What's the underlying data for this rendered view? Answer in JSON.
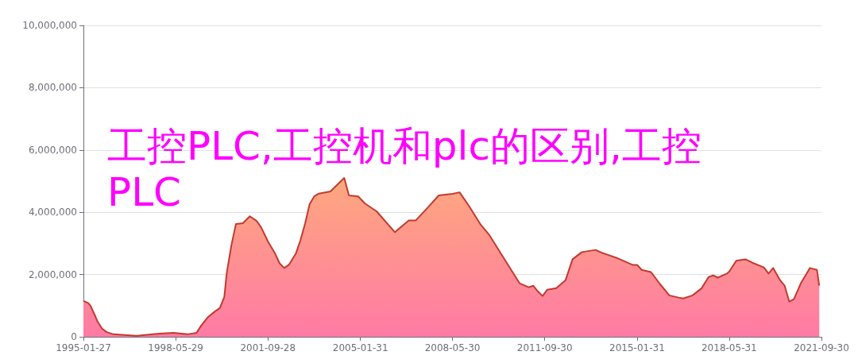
{
  "chart_data": {
    "type": "area",
    "title": "工控PLC,工控机和plc的区别,工控PLC",
    "x": [
      "1995-01-27",
      "1995-04",
      "1995-05",
      "1995-07",
      "1995-08",
      "1995-10",
      "1995-12",
      "1996-03",
      "1996-09",
      "1997-01",
      "1997-08",
      "1997-11",
      "1998-05",
      "1998-11",
      "1999-03",
      "1999-05",
      "1999-08",
      "1999-11",
      "2000-01",
      "2000-03",
      "2000-04",
      "2000-06",
      "2000-08",
      "2000-11",
      "2001-02",
      "2001-05",
      "2001-07",
      "2001-10",
      "2002-01",
      "2002-03",
      "2002-05",
      "2002-07",
      "2002-10",
      "2002-12",
      "2003-02",
      "2003-04",
      "2003-06",
      "2003-08",
      "2004-01",
      "2004-07",
      "2004-09",
      "2005-01",
      "2005-04",
      "2005-09",
      "2006-05",
      "2006-11",
      "2007-02",
      "2007-07",
      "2007-12",
      "2008-06",
      "2008-09",
      "2009-01",
      "2009-06",
      "2009-10",
      "2010-03",
      "2010-08",
      "2010-11",
      "2011-03",
      "2011-05",
      "2011-07",
      "2011-09",
      "2011-11",
      "2012-03",
      "2012-07",
      "2012-10",
      "2013-02",
      "2013-08",
      "2013-11",
      "2014-05",
      "2014-12",
      "2015-02",
      "2015-04",
      "2015-08",
      "2015-12",
      "2016-04",
      "2016-08",
      "2016-10",
      "2017-02",
      "2017-06",
      "2017-09",
      "2017-11",
      "2018-01",
      "2018-05",
      "2018-06",
      "2018-09",
      "2019-01",
      "2019-04",
      "2019-09",
      "2019-11",
      "2020-01",
      "2020-04",
      "2020-06",
      "2020-08",
      "2020-10",
      "2021-01",
      "2021-05",
      "2021-08",
      "2021-09"
    ],
    "series": [
      {
        "color": "#c23a2f",
        "values": [
          1150000,
          1080000,
          1000000,
          670000,
          490000,
          260000,
          150000,
          80000,
          50000,
          30000,
          80000,
          100000,
          130000,
          80000,
          130000,
          360000,
          640000,
          820000,
          920000,
          1280000,
          2030000,
          2920000,
          3620000,
          3650000,
          3870000,
          3720000,
          3510000,
          3050000,
          2670000,
          2360000,
          2210000,
          2310000,
          2670000,
          3100000,
          3640000,
          4260000,
          4510000,
          4600000,
          4670000,
          5100000,
          4540000,
          4510000,
          4280000,
          4030000,
          3360000,
          3740000,
          3740000,
          4130000,
          4540000,
          4590000,
          4640000,
          4210000,
          3620000,
          3260000,
          2670000,
          2080000,
          1720000,
          1590000,
          1640000,
          1460000,
          1310000,
          1510000,
          1560000,
          1820000,
          2490000,
          2720000,
          2790000,
          2690000,
          2540000,
          2310000,
          2310000,
          2150000,
          2080000,
          1690000,
          1330000,
          1260000,
          1230000,
          1330000,
          1560000,
          1920000,
          1970000,
          1900000,
          2030000,
          2100000,
          2440000,
          2490000,
          2380000,
          2230000,
          2030000,
          2210000,
          1820000,
          1640000,
          1130000,
          1210000,
          1720000,
          2210000,
          2150000,
          1640000
        ]
      }
    ],
    "xlim": [
      "1995-01-27",
      "2021-09-30"
    ],
    "xticks": [
      {
        "value": "1995-01-27",
        "label": "1995-01-27"
      },
      {
        "value": "1998-05-29",
        "label": "1998-05-29"
      },
      {
        "value": "2001-09-28",
        "label": "2001-09-28"
      },
      {
        "value": "2005-01-31",
        "label": "2005-01-31"
      },
      {
        "value": "2008-05-30",
        "label": "2008-05-30"
      },
      {
        "value": "2011-09-30",
        "label": "2011-09-30"
      },
      {
        "value": "2015-01-31",
        "label": "2015-01-31"
      },
      {
        "value": "2018-05-31",
        "label": "2018-05-31"
      },
      {
        "value": "2021-09-30",
        "label": "2021-09-30"
      }
    ],
    "ylim": [
      0,
      10000000
    ],
    "yticks": [
      {
        "value": 0,
        "label": "0"
      },
      {
        "value": 2000000,
        "label": "2,000,000"
      },
      {
        "value": 4000000,
        "label": "4,000,000"
      },
      {
        "value": 6000000,
        "label": "6,000,000"
      },
      {
        "value": 8000000,
        "label": "8,000,000"
      },
      {
        "value": 10000000,
        "label": "10,000,000"
      }
    ],
    "grid": "y"
  }
}
